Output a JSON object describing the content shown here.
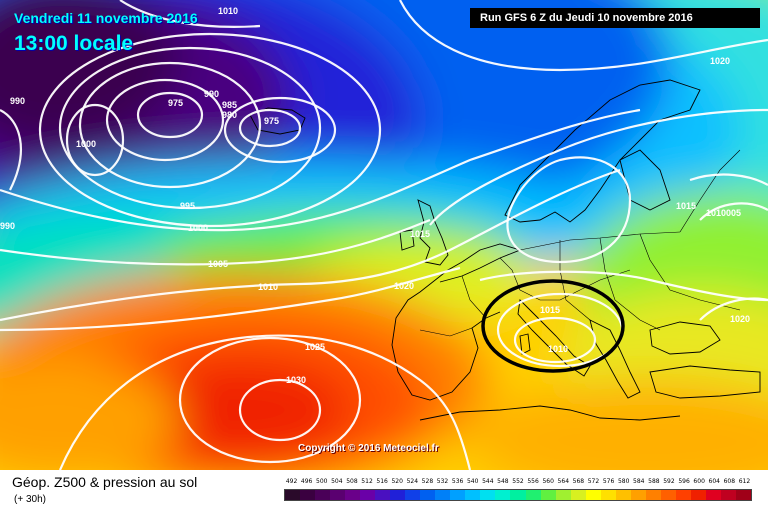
{
  "header": {
    "date_line": "Vendredi 11 novembre 2016",
    "time_line": "13:00 locale",
    "run_banner": "Run GFS 6 Z du Jeudi 10 novembre 2016"
  },
  "copyright": "Copyright © 2016 Meteociel.fr",
  "legend": {
    "title": "Géop. Z500 & pression au sol",
    "subtitle": "(+ 30h)",
    "scale_values": [
      "492",
      "496",
      "500",
      "504",
      "508",
      "512",
      "516",
      "520",
      "524",
      "528",
      "532",
      "536",
      "540",
      "544",
      "548",
      "552",
      "556",
      "560",
      "564",
      "568",
      "572",
      "576",
      "580",
      "584",
      "588",
      "592",
      "596",
      "600",
      "604",
      "608",
      "612"
    ],
    "scale_colors": [
      "#2a0a2a",
      "#3a0040",
      "#4a0058",
      "#5a0070",
      "#6a008a",
      "#6a00a8",
      "#4a10c0",
      "#2020d8",
      "#1040e8",
      "#0060f0",
      "#0080f8",
      "#00a0ff",
      "#00c0ff",
      "#00e0f0",
      "#00f0d0",
      "#00f0a0",
      "#20f070",
      "#60f040",
      "#a0f030",
      "#d8f020",
      "#ffff00",
      "#ffe000",
      "#ffc000",
      "#ffa000",
      "#ff8000",
      "#ff6000",
      "#ff4000",
      "#f02000",
      "#e00020",
      "#c00020",
      "#a00018"
    ]
  },
  "isobars": [
    {
      "label": "990"
    },
    {
      "label": "975"
    },
    {
      "label": "990"
    },
    {
      "label": "985"
    },
    {
      "label": "980"
    },
    {
      "label": "975"
    },
    {
      "label": "1000"
    },
    {
      "label": "995"
    },
    {
      "label": "1000"
    },
    {
      "label": "990"
    },
    {
      "label": "1005"
    },
    {
      "label": "1010"
    },
    {
      "label": "1015"
    },
    {
      "label": "1020"
    },
    {
      "label": "1025"
    },
    {
      "label": "1030"
    },
    {
      "label": "1015"
    },
    {
      "label": "1010"
    },
    {
      "label": "1020"
    },
    {
      "label": "1015"
    },
    {
      "label": "1010005"
    },
    {
      "label": "1020"
    },
    {
      "label": "1010"
    }
  ]
}
